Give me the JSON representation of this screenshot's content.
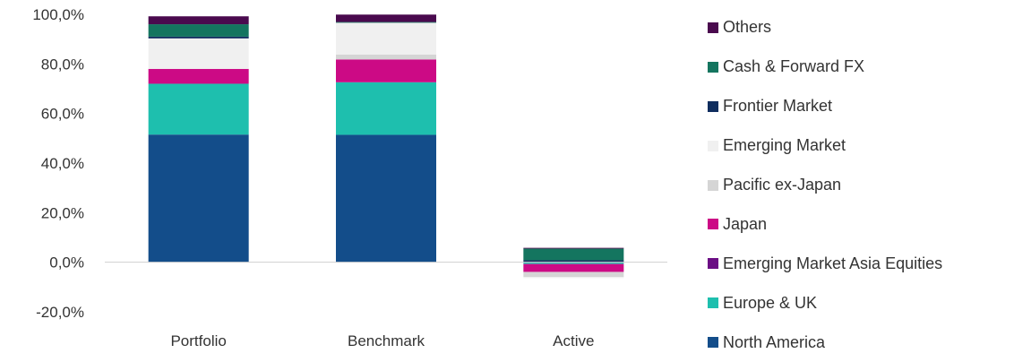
{
  "chart_data": {
    "type": "bar",
    "stacked": true,
    "categories": [
      "Portfolio",
      "Benchmark",
      "Active"
    ],
    "ylim": [
      -20,
      100
    ],
    "y_ticks": [
      "100,0%",
      "80,0%",
      "60,0%",
      "40,0%",
      "20,0%",
      "0,0%",
      "-20,0%"
    ],
    "y_tick_values": [
      100,
      80,
      60,
      40,
      20,
      0,
      -20
    ],
    "grid": false,
    "legend_position": "right",
    "series": [
      {
        "name": "North America",
        "color": "#134d8a",
        "values": [
          51.5,
          51.4,
          0.1
        ]
      },
      {
        "name": "Europe & UK",
        "color": "#1ebfae",
        "values": [
          20.5,
          21.2,
          -0.7
        ]
      },
      {
        "name": "Emerging Market Asia Equities",
        "color": "#6b0d84",
        "values": [
          0.0,
          0.0,
          0.0
        ]
      },
      {
        "name": "Japan",
        "color": "#cc0a85",
        "values": [
          6.0,
          9.2,
          -3.2
        ]
      },
      {
        "name": "Pacific ex-Japan",
        "color": "#d5d5d5",
        "values": [
          0.0,
          2.0,
          -2.0
        ]
      },
      {
        "name": "Emerging Market",
        "color": "#f0f0f0",
        "values": [
          12.3,
          12.8,
          -0.5
        ]
      },
      {
        "name": "Frontier Market",
        "color": "#0f2d5e",
        "values": [
          0.7,
          0.0,
          0.7
        ]
      },
      {
        "name": "Cash & Forward FX",
        "color": "#14755f",
        "values": [
          5.0,
          0.3,
          4.7
        ]
      },
      {
        "name": "Others",
        "color": "#4a0a4e",
        "values": [
          3.2,
          3.0,
          0.3
        ]
      }
    ],
    "legend_order": [
      "Others",
      "Cash & Forward FX",
      "Frontier Market",
      "Emerging Market",
      "Pacific ex-Japan",
      "Japan",
      "Emerging Market Asia Equities",
      "Europe & UK",
      "North America"
    ]
  }
}
